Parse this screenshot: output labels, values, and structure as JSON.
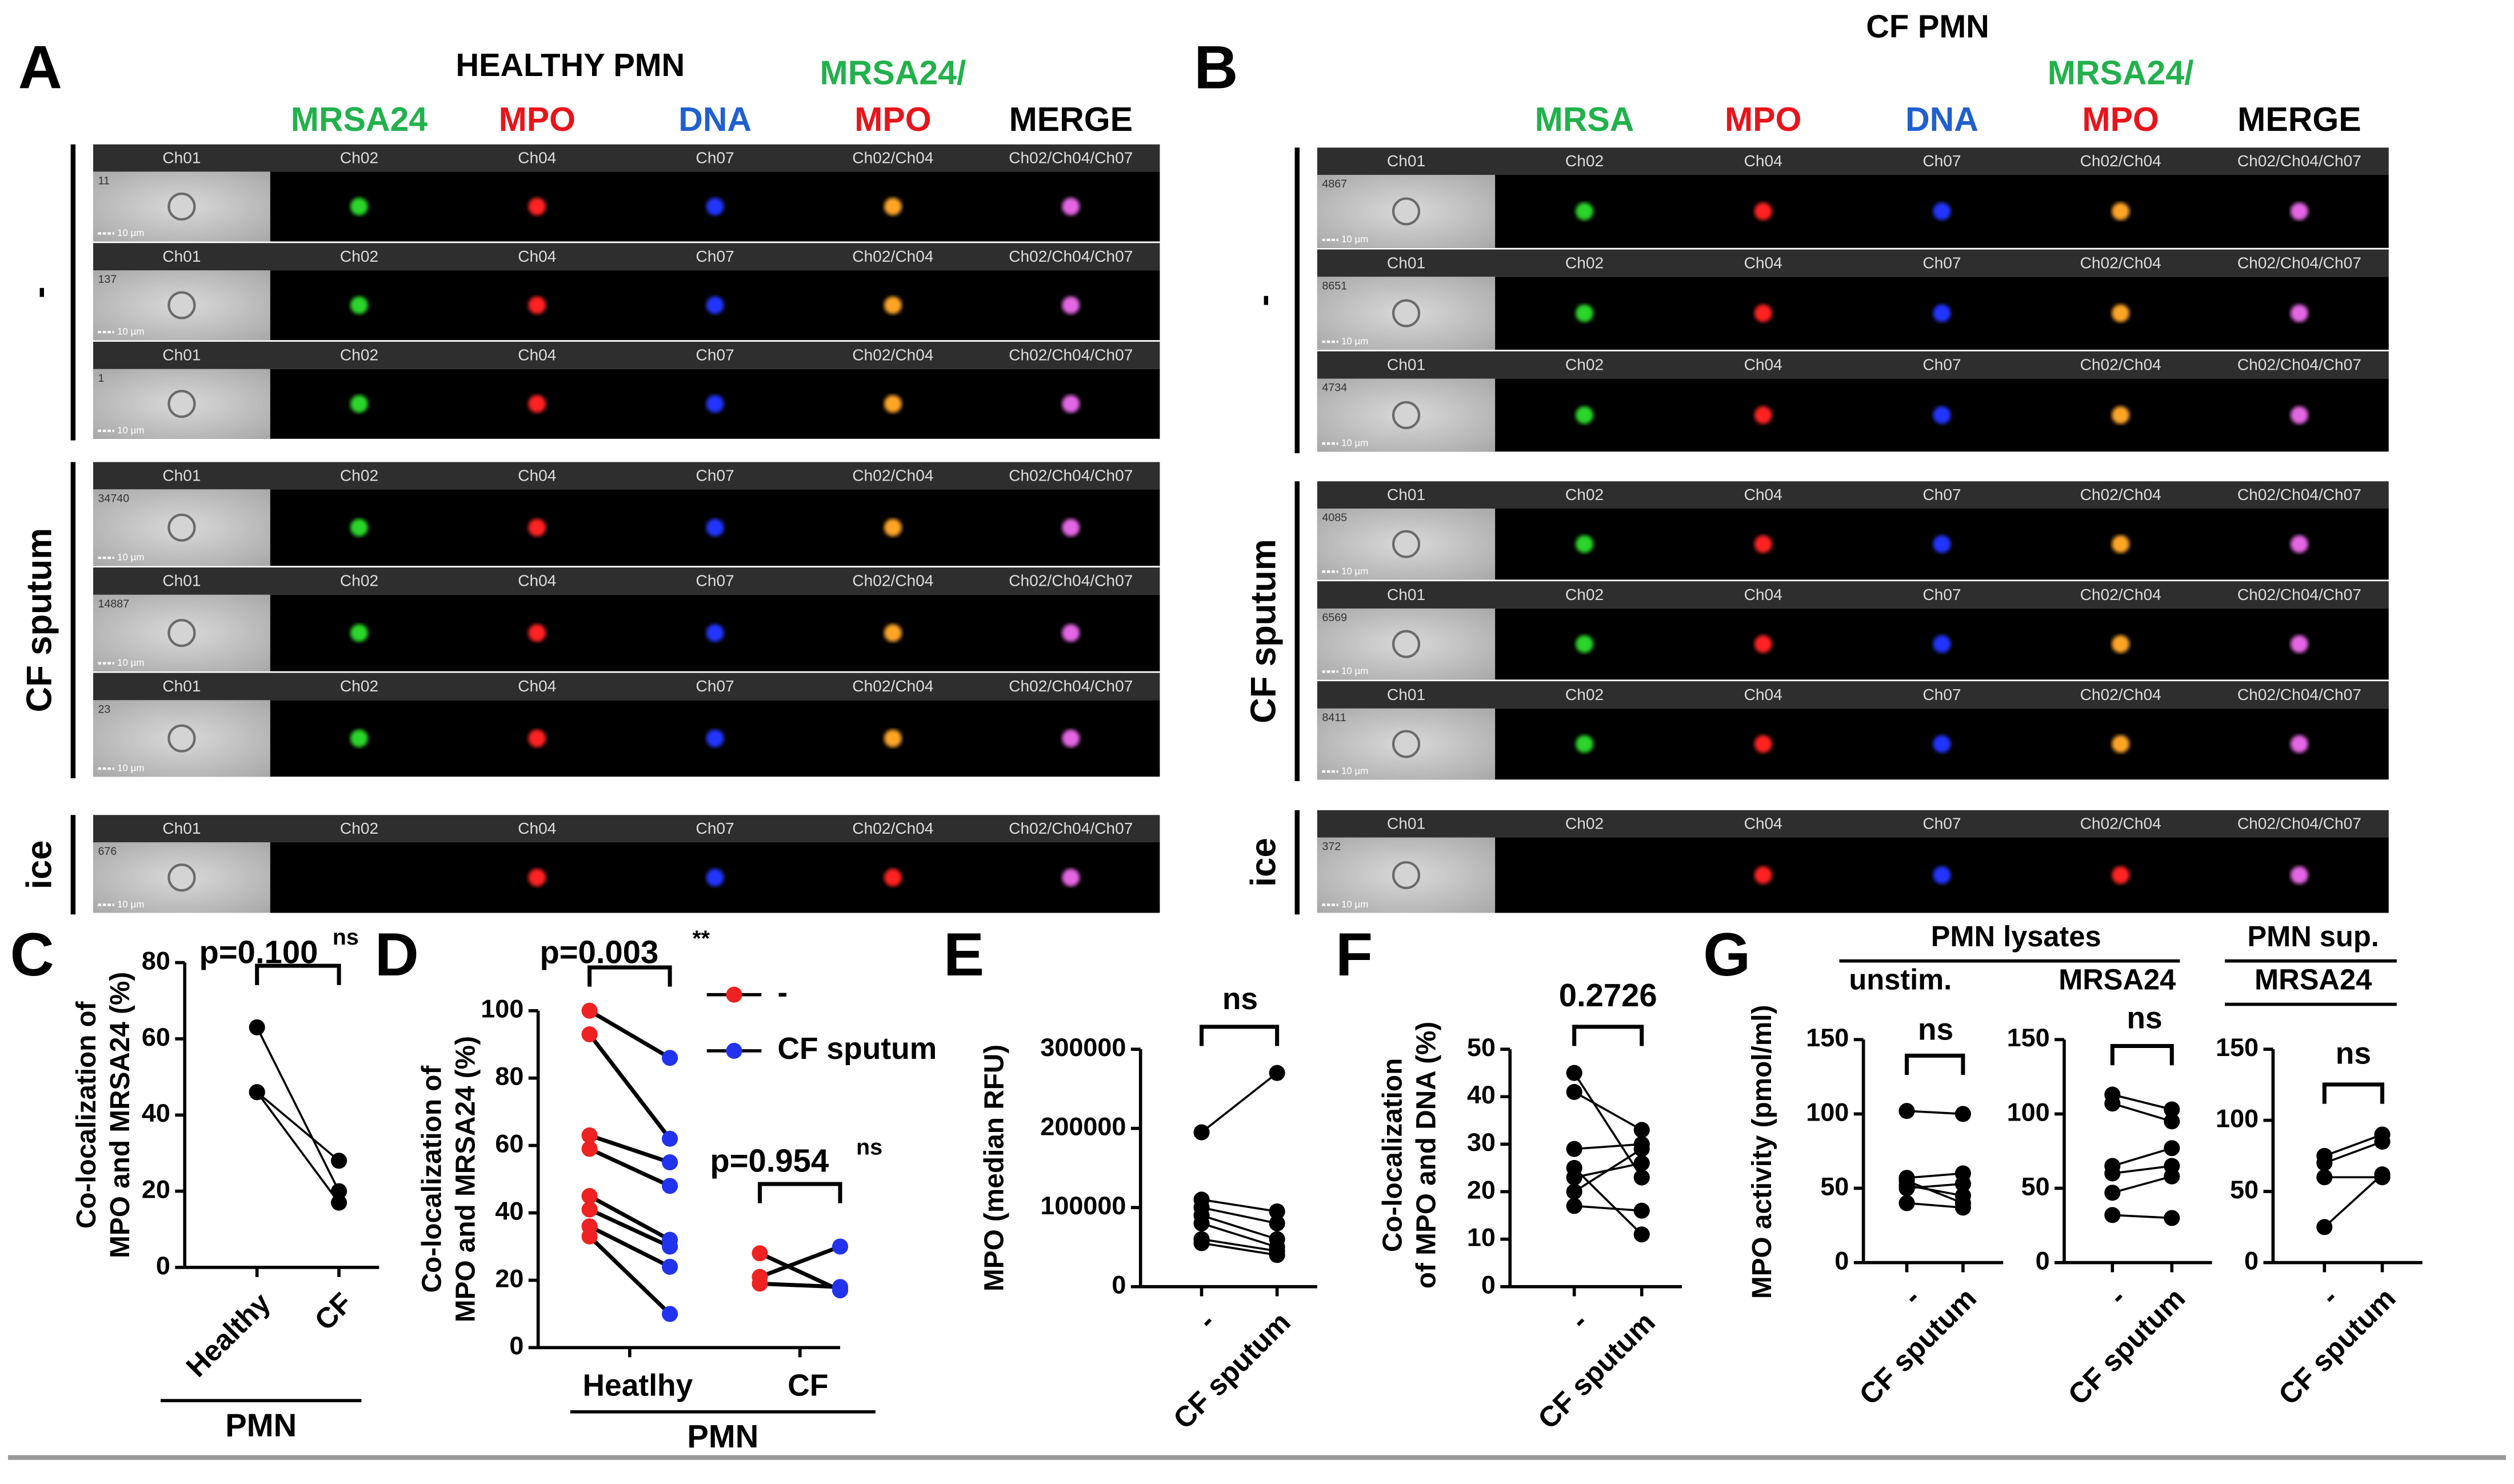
{
  "panels": [
    {
      "letter": "A",
      "title": "HEALTHY PMN",
      "column_labels": [
        [
          {
            "text": "MRSA24",
            "color": "#22b14c"
          }
        ],
        [
          {
            "text": "MPO",
            "color": "#e8141b"
          }
        ],
        [
          {
            "text": "DNA",
            "color": "#1f5fd1"
          }
        ],
        [
          {
            "text": "MRSA24/",
            "color": "#22b14c"
          },
          {
            "text": "MPO",
            "color": "#e8141b"
          }
        ],
        [
          {
            "text": "MERGE",
            "color": "#000000"
          }
        ]
      ],
      "channels": [
        "Ch01",
        "Ch02",
        "Ch04",
        "Ch07",
        "Ch02/Ch04",
        "Ch02/Ch04/Ch07"
      ],
      "scale_bar": "10 µm",
      "groups": [
        {
          "label": "-",
          "events": [
            "11",
            "137",
            "1"
          ]
        },
        {
          "label": "CF sputum",
          "events": [
            "34740",
            "14887",
            "23"
          ]
        },
        {
          "label": "ice",
          "events": [
            "676"
          ]
        }
      ]
    },
    {
      "letter": "B",
      "title": "CF PMN",
      "column_labels": [
        [
          {
            "text": "MRSA",
            "color": "#22b14c"
          }
        ],
        [
          {
            "text": "MPO",
            "color": "#e8141b"
          }
        ],
        [
          {
            "text": "DNA",
            "color": "#1f5fd1"
          }
        ],
        [
          {
            "text": "MRSA24/",
            "color": "#22b14c"
          },
          {
            "text": "MPO",
            "color": "#e8141b"
          }
        ],
        [
          {
            "text": "MERGE",
            "color": "#000000"
          }
        ]
      ],
      "channels": [
        "Ch01",
        "Ch02",
        "Ch04",
        "Ch07",
        "Ch02/Ch04",
        "Ch02/Ch04/Ch07"
      ],
      "scale_bar": "10 µm",
      "groups": [
        {
          "label": "-",
          "events": [
            "4867",
            "8651",
            "4734"
          ]
        },
        {
          "label": "CF sputum",
          "events": [
            "4085",
            "6569",
            "8411"
          ]
        },
        {
          "label": "ice",
          "events": [
            "372"
          ]
        }
      ]
    }
  ],
  "chart_data": [
    {
      "type": "paired",
      "letter": "C",
      "ylabel": [
        "Co-localization of",
        "MPO and MRSA24 (%)"
      ],
      "categories": [
        "Healthy",
        "CF"
      ],
      "group_label": "PMN",
      "ylim": [
        0,
        80
      ],
      "yticks": [
        0,
        20,
        40,
        60,
        80
      ],
      "series": [
        {
          "color": "#000000",
          "values": [
            [
              63,
              46,
              46
            ],
            [
              20,
              17,
              28
            ]
          ]
        }
      ],
      "annotations": [
        {
          "text": "p=0.100",
          "sig": "ns"
        }
      ]
    },
    {
      "type": "paired",
      "letter": "D",
      "ylabel": [
        "Co-localization of",
        "MPO and MRSA24 (%)"
      ],
      "categories": [
        "Heatlhy",
        "CF"
      ],
      "group_label": "PMN",
      "ylim": [
        0,
        100
      ],
      "yticks": [
        0,
        20,
        40,
        60,
        80,
        100
      ],
      "series": [
        {
          "name": "-",
          "color": "#ee2222",
          "values": [
            [
              100,
              93,
              63,
              59,
              45,
              41,
              36,
              33
            ],
            [
              28,
              21,
              19
            ]
          ]
        },
        {
          "name": "CF sputum",
          "color": "#2233ee",
          "values": [
            [
              86,
              62,
              55,
              48,
              32,
              30,
              24,
              10
            ],
            [
              17,
              30,
              18
            ]
          ]
        }
      ],
      "annotations": [
        {
          "text": "p=0.003",
          "sig": "**"
        },
        {
          "text": "p=0.954",
          "sig": "ns"
        }
      ]
    },
    {
      "type": "paired",
      "letter": "E",
      "ylabel": [
        "MPO (median RFU)"
      ],
      "categories": [
        "-",
        "CF sputum"
      ],
      "ylim": [
        0,
        300000
      ],
      "yticks": [
        0,
        100000,
        200000,
        300000
      ],
      "series": [
        {
          "color": "#000000",
          "values": [
            [
              195000,
              110000,
              100000,
              90000,
              80000,
              60000,
              55000
            ],
            [
              270000,
              95000,
              80000,
              60000,
              50000,
              45000,
              40000
            ]
          ]
        }
      ],
      "annotations": [
        {
          "sig": "ns"
        }
      ]
    },
    {
      "type": "paired",
      "letter": "F",
      "ylabel": [
        "Co-localization",
        "of MPO and DNA (%)"
      ],
      "categories": [
        "-",
        "CF sputum"
      ],
      "ylim": [
        0,
        50
      ],
      "yticks": [
        0,
        10,
        20,
        30,
        40,
        50
      ],
      "series": [
        {
          "color": "#000000",
          "values": [
            [
              45,
              41,
              29,
              25,
              23,
              20,
              17
            ],
            [
              23,
              33,
              30,
              11,
              26,
              29,
              16
            ]
          ]
        }
      ],
      "annotations": [
        {
          "text": "0.2726"
        }
      ]
    },
    {
      "type": "paired",
      "letter": "G",
      "ylabel": [
        "MPO activity (pmol/ml)"
      ],
      "group_title": "PMN lysates",
      "subtitle": "unstim.",
      "categories": [
        "-",
        "CF sputum"
      ],
      "ylim": [
        0,
        150
      ],
      "yticks": [
        0,
        50,
        100,
        150
      ],
      "series": [
        {
          "color": "#000000",
          "values": [
            [
              102,
              57,
              52,
              50,
              40,
              55
            ],
            [
              100,
              60,
              45,
              53,
              37,
              40
            ]
          ]
        }
      ],
      "annotations": [
        {
          "sig": "ns"
        }
      ]
    },
    {
      "type": "paired",
      "subtitle": "MRSA24",
      "categories": [
        "-",
        "CF sputum"
      ],
      "ylim": [
        0,
        150
      ],
      "yticks": [
        0,
        50,
        100,
        150
      ],
      "series": [
        {
          "color": "#000000",
          "values": [
            [
              113,
              107,
              65,
              60,
              47,
              32
            ],
            [
              103,
              95,
              77,
              65,
              58,
              30
            ]
          ]
        }
      ],
      "annotations": [
        {
          "sig": "ns"
        }
      ]
    },
    {
      "type": "paired",
      "group_title": "PMN sup.",
      "subtitle": "MRSA24",
      "categories": [
        "-",
        "CF sputum"
      ],
      "ylim": [
        0,
        150
      ],
      "yticks": [
        0,
        50,
        100,
        150
      ],
      "series": [
        {
          "color": "#000000",
          "values": [
            [
              75,
              70,
              60,
              25
            ],
            [
              90,
              85,
              60,
              62
            ]
          ]
        }
      ],
      "annotations": [
        {
          "sig": "ns"
        }
      ]
    }
  ]
}
